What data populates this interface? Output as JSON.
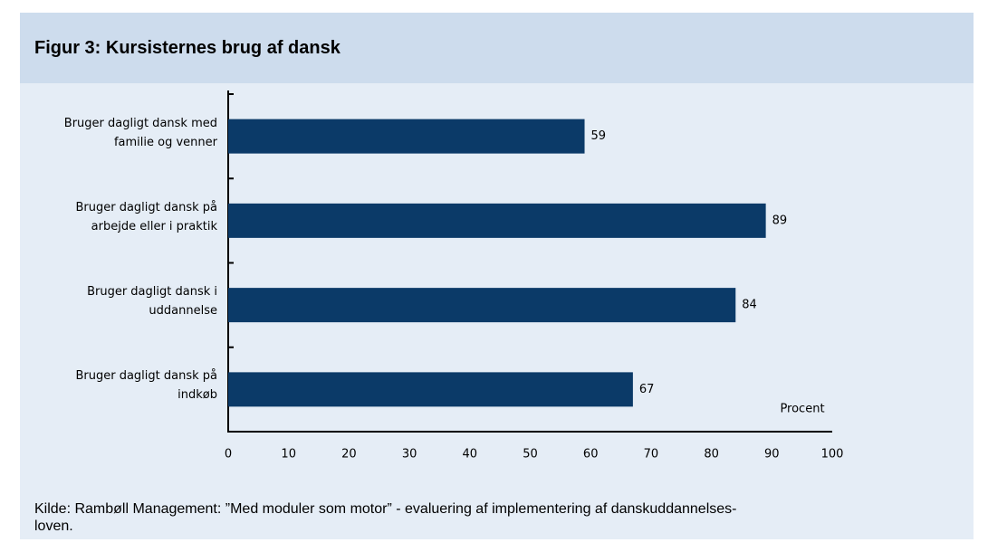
{
  "chart_data": {
    "type": "barh",
    "title": "Figur 3: Kursisternes brug af dansk",
    "categories": [
      "Bruger dagligt dansk med\nfamilie og venner",
      "Bruger dagligt dansk på\narbejde eller i praktik",
      "Bruger dagligt dansk i\nuddannelse",
      "Bruger dagligt dansk på\nindkøb"
    ],
    "values": [
      59,
      89,
      84,
      67
    ],
    "color": "#0b3a68",
    "xlim": [
      0,
      100
    ],
    "xticks": [
      0,
      10,
      20,
      30,
      40,
      50,
      60,
      70,
      80,
      90,
      100
    ],
    "grid": false,
    "annotation": "Procent",
    "source": "Kilde: Rambøll Management: ”Med moduler som motor” - evaluering af implementering af danskuddannelses-\nloven."
  }
}
